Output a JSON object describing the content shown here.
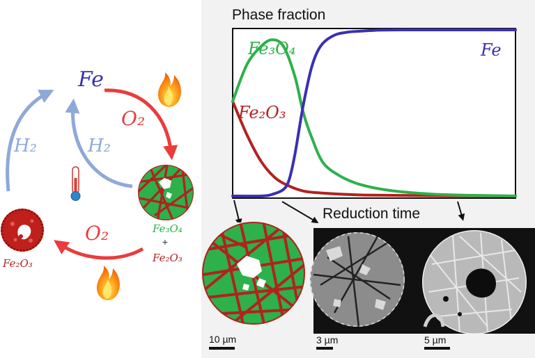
{
  "colors": {
    "fe": "#3b2fb4",
    "fe3o4": "#2eb04a",
    "fe2o3": "#b0231f",
    "o2": "#ea3c3c",
    "h2": "#8ea9d8",
    "panel_bg": "#f2f2f2"
  },
  "cycle": {
    "fe_label": "Fe",
    "o2_top": "O₂",
    "o2_bottom": "O₂",
    "h2_left": "H₂",
    "h2_inner": "H₂",
    "fe3o4_label": "Fe₃O₄",
    "plus": "+",
    "fe2o3_label": "Fe₂O₃",
    "fe2o3_left_label": "Fe₂O₃",
    "flame_icon_top": "flame-icon",
    "flame_icon_bottom": "flame-icon",
    "thermometer_icon": "thermometer-icon"
  },
  "chart_data": {
    "type": "line",
    "title": "Phase fraction",
    "xlabel": "Reduction time",
    "ylabel": "",
    "series": [
      {
        "name": "Fe₂O₃",
        "color": "#b0231f",
        "x": [
          0,
          0.05,
          0.1,
          0.15,
          0.2,
          0.25,
          0.3,
          0.4,
          0.5,
          0.7,
          1.0
        ],
        "y": [
          0.57,
          0.37,
          0.21,
          0.11,
          0.06,
          0.03,
          0.02,
          0.01,
          0.005,
          0.002,
          0
        ]
      },
      {
        "name": "Fe₃O₄",
        "color": "#2eb04a",
        "x": [
          0,
          0.05,
          0.1,
          0.14,
          0.18,
          0.22,
          0.25,
          0.28,
          0.32,
          0.38,
          0.45,
          0.55,
          0.7,
          0.85,
          1.0
        ],
        "y": [
          0.57,
          0.79,
          0.9,
          0.94,
          0.9,
          0.72,
          0.5,
          0.35,
          0.2,
          0.12,
          0.07,
          0.035,
          0.012,
          0.004,
          0
        ]
      },
      {
        "name": "Fe",
        "color": "#3b2fb4",
        "x": [
          0,
          0.1,
          0.14,
          0.18,
          0.2,
          0.22,
          0.25,
          0.28,
          0.31,
          0.35,
          0.4,
          0.5,
          0.6,
          1.0
        ],
        "y": [
          0,
          0,
          0.01,
          0.04,
          0.1,
          0.25,
          0.55,
          0.78,
          0.9,
          0.96,
          0.985,
          0.997,
          1.0,
          1.0
        ]
      }
    ]
  },
  "micrographs": [
    {
      "scale": "10 µm"
    },
    {
      "scale": "3 µm"
    },
    {
      "scale": "5 µm"
    }
  ]
}
